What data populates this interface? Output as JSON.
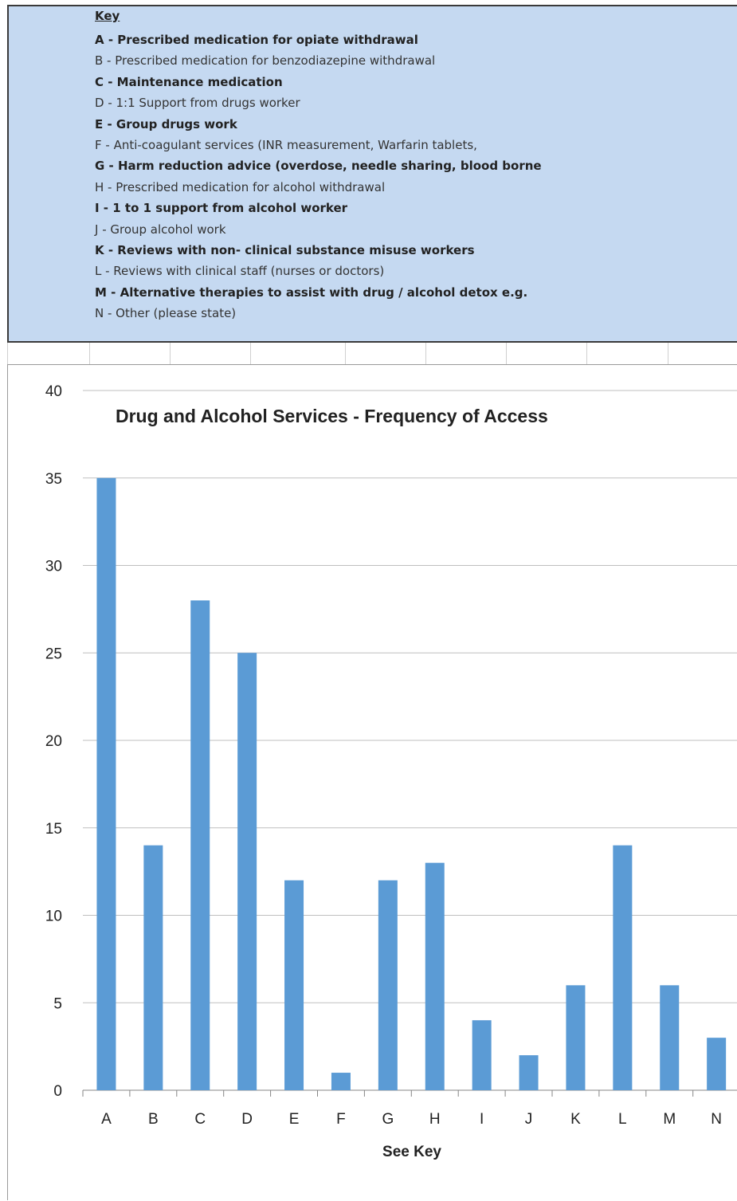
{
  "key": {
    "title": "Key",
    "items": [
      {
        "text": "A - Prescribed medication for opiate withdrawal",
        "bold": true
      },
      {
        "text": "B - Prescribed medication for benzodiazepine withdrawal",
        "bold": false
      },
      {
        "text": "C - Maintenance medication",
        "bold": true
      },
      {
        "text": "D - 1:1 Support from drugs worker",
        "bold": false
      },
      {
        "text": "E - Group drugs work",
        "bold": true
      },
      {
        "text": "F - Anti-coagulant services (INR measurement, Warfarin tablets,",
        "bold": false
      },
      {
        "text": "G - Harm reduction advice (overdose, needle sharing, blood borne",
        "bold": true
      },
      {
        "text": "H - Prescribed medication for alcohol withdrawal",
        "bold": false
      },
      {
        "text": "I - 1 to 1 support from alcohol worker",
        "bold": true
      },
      {
        "text": "J - Group alcohol work",
        "bold": false
      },
      {
        "text": "K - Reviews with non- clinical substance misuse workers",
        "bold": true
      },
      {
        "text": "L - Reviews with clinical staff  (nurses or doctors)",
        "bold": false
      },
      {
        "text": "M - Alternative therapies to assist with drug / alcohol detox  e.g.",
        "bold": true
      },
      {
        "text": "N - Other (please  state)",
        "bold": false
      }
    ]
  },
  "chart_data": {
    "type": "bar",
    "title": "Drug and Alcohol Services - Frequency of Access",
    "xlabel": "See Key",
    "ylabel": "",
    "categories": [
      "A",
      "B",
      "C",
      "D",
      "E",
      "F",
      "G",
      "H",
      "I",
      "J",
      "K",
      "L",
      "M",
      "N"
    ],
    "values": [
      35,
      14,
      28,
      25,
      12,
      1,
      12,
      13,
      4,
      2,
      6,
      14,
      6,
      3
    ],
    "ylim": [
      0,
      40
    ],
    "yticks": [
      0,
      5,
      10,
      15,
      20,
      25,
      30,
      35,
      40
    ],
    "grid": true,
    "legend": "none",
    "bar_color": "#5b9bd5",
    "grid_color": "#bfbfbf",
    "axis_color": "#868686"
  }
}
